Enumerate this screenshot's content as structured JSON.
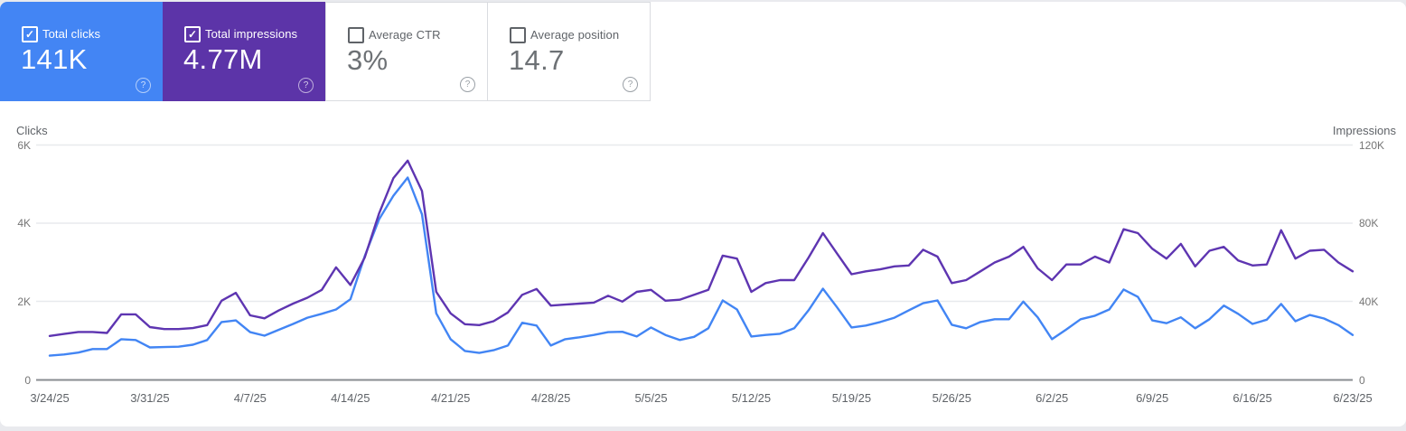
{
  "cards": [
    {
      "label": "Total clicks",
      "value": "141K",
      "checked": true,
      "bg": "#4385f4"
    },
    {
      "label": "Total impressions",
      "value": "4.77M",
      "checked": true,
      "bg": "#5c34a8"
    },
    {
      "label": "Average CTR",
      "value": "3%",
      "checked": false
    },
    {
      "label": "Average position",
      "value": "14.7",
      "checked": false
    }
  ],
  "chart_data": {
    "type": "line",
    "granularity": "daily",
    "date_start": "3/24/25",
    "date_end": "6/23/25",
    "grid": "horizontal",
    "legend": "none",
    "x_tick_labels": [
      "3/24/25",
      "3/31/25",
      "4/7/25",
      "4/14/25",
      "4/21/25",
      "4/28/25",
      "5/5/25",
      "5/12/25",
      "5/19/25",
      "5/26/25",
      "6/2/25",
      "6/9/25",
      "6/16/25",
      "6/23/25"
    ],
    "left_axis": {
      "label": "Clicks",
      "range": [
        0,
        6000
      ],
      "tick_labels": [
        "6K",
        "4K",
        "2K",
        "0"
      ]
    },
    "right_axis": {
      "label": "Impressions",
      "range": [
        0,
        120000
      ],
      "tick_labels": [
        "120K",
        "80K",
        "40K",
        "0"
      ]
    },
    "series": [
      {
        "name": "Clicks",
        "axis": "left",
        "color": "#4285f4",
        "values": [
          620,
          650,
          700,
          790,
          790,
          1040,
          1020,
          830,
          840,
          850,
          900,
          1020,
          1480,
          1520,
          1220,
          1130,
          1280,
          1430,
          1590,
          1690,
          1800,
          2060,
          3160,
          4100,
          4700,
          5170,
          4230,
          1700,
          1040,
          740,
          690,
          760,
          880,
          1460,
          1390,
          880,
          1040,
          1090,
          1150,
          1220,
          1230,
          1110,
          1340,
          1150,
          1020,
          1100,
          1320,
          2030,
          1800,
          1110,
          1150,
          1180,
          1320,
          1780,
          2330,
          1850,
          1340,
          1390,
          1480,
          1590,
          1780,
          1960,
          2030,
          1410,
          1320,
          1480,
          1550,
          1550,
          2000,
          1600,
          1040,
          1290,
          1550,
          1640,
          1800,
          2310,
          2120,
          1520,
          1450,
          1600,
          1320,
          1550,
          1900,
          1690,
          1430,
          1540,
          1940,
          1500,
          1660,
          1570,
          1400,
          1150
        ]
      },
      {
        "name": "Impressions",
        "axis": "right",
        "color": "#5e35b1",
        "values": [
          22500,
          23500,
          24500,
          24500,
          24000,
          33500,
          33500,
          27000,
          26000,
          26000,
          26500,
          28000,
          40500,
          44500,
          33000,
          31500,
          35500,
          39000,
          42000,
          46000,
          57500,
          48500,
          62500,
          85000,
          103000,
          112000,
          96500,
          45000,
          34000,
          28500,
          28000,
          30000,
          34500,
          43500,
          46500,
          38000,
          38500,
          39000,
          39500,
          43000,
          40000,
          45000,
          46000,
          40500,
          41000,
          43500,
          46000,
          63500,
          62000,
          45000,
          49500,
          51000,
          51000,
          62500,
          75000,
          64500,
          54000,
          55500,
          56500,
          58000,
          58500,
          66500,
          63000,
          49500,
          51000,
          55500,
          60000,
          63000,
          68000,
          57000,
          51000,
          59000,
          59000,
          63000,
          60000,
          77000,
          75000,
          67000,
          62000,
          69500,
          58000,
          66000,
          68000,
          61000,
          58500,
          59000,
          76500,
          62000,
          66000,
          66500,
          60000,
          55500
        ]
      }
    ]
  }
}
